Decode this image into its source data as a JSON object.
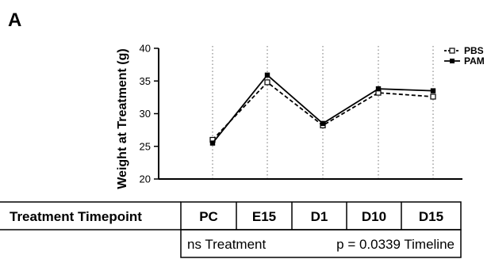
{
  "panel_label": "A",
  "chart_data": {
    "type": "line",
    "categories": [
      "PC",
      "E15",
      "D1",
      "D10",
      "D15"
    ],
    "series": [
      {
        "name": "PBS",
        "values": [
          26.0,
          34.8,
          28.2,
          33.2,
          32.6
        ],
        "style": "dashed",
        "marker": "open-square",
        "color": "#000000"
      },
      {
        "name": "PAM",
        "values": [
          25.5,
          35.9,
          28.5,
          33.8,
          33.5
        ],
        "style": "solid",
        "marker": "filled-square",
        "color": "#000000"
      }
    ],
    "ylabel": "Weight at Treatment (g)",
    "ylim": [
      20,
      40
    ],
    "yticks": [
      "20",
      "25",
      "30",
      "35",
      "40"
    ],
    "vertical_guides": "dotted",
    "legend_position": "top-right"
  },
  "table": {
    "row_header": "Treatment Timepoint",
    "timepoints": [
      "PC",
      "E15",
      "D1",
      "D10",
      "D15"
    ],
    "stats_left": "ns Treatment",
    "stats_right": "p = 0.0339 Timeline"
  }
}
